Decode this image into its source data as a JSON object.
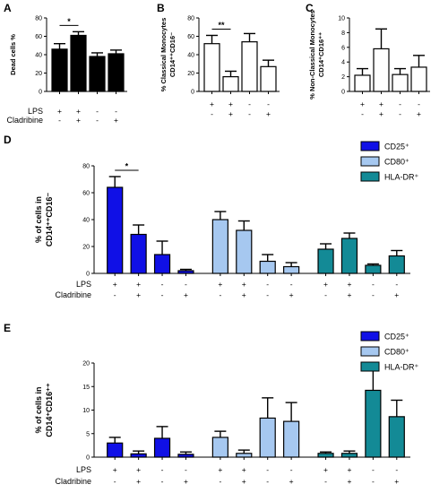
{
  "colors": {
    "CD25": "#1010e6",
    "CD80": "#a6c8f0",
    "HLA-DR": "#138a96",
    "black": "#000000",
    "white": "#ffffff"
  },
  "treatment_rows": {
    "lps_label": "LPS",
    "cladribine_label": "Cladribine",
    "lps_signs": [
      "+",
      "+",
      "-",
      "-"
    ],
    "cladribine_signs": [
      "-",
      "+",
      "-",
      "+"
    ]
  },
  "chart_data": [
    {
      "panel": "A",
      "type": "bar",
      "ylabel": "Dead cells %",
      "ylim": [
        0,
        80
      ],
      "yticks": [
        0,
        20,
        40,
        60,
        80
      ],
      "categories": [
        "LPS+ Cladribine-",
        "LPS+ Cladribine+",
        "LPS- Cladribine-",
        "LPS- Cladribine+"
      ],
      "values": [
        46,
        61,
        38,
        41
      ],
      "errors": [
        6,
        4,
        4,
        4
      ],
      "fill": "black",
      "significance": [
        {
          "from": 0,
          "to": 1,
          "label": "*"
        }
      ]
    },
    {
      "panel": "B",
      "type": "bar",
      "ylabel_line1": "% Classical Monocytes",
      "ylabel_line2": "CD14⁺⁺CD16⁻",
      "ylim": [
        0,
        80
      ],
      "yticks": [
        0,
        20,
        40,
        60,
        80
      ],
      "categories": [
        "LPS+ Cladribine-",
        "LPS+ Cladribine+",
        "LPS- Cladribine-",
        "LPS- Cladribine+"
      ],
      "values": [
        52,
        16,
        54,
        27
      ],
      "errors": [
        9,
        6,
        9,
        7
      ],
      "fill": "white",
      "significance": [
        {
          "from": 0,
          "to": 1,
          "label": "**"
        }
      ]
    },
    {
      "panel": "C",
      "type": "bar",
      "ylabel_line1": "% Non-Classical Monocytes",
      "ylabel_line2": "CD14⁺CD16⁺⁺",
      "ylim": [
        0,
        10
      ],
      "yticks": [
        0,
        2,
        4,
        6,
        8,
        10
      ],
      "categories": [
        "LPS+ Cladribine-",
        "LPS+ Cladribine+",
        "LPS- Cladribine-",
        "LPS- Cladribine+"
      ],
      "values": [
        2.2,
        5.8,
        2.3,
        3.3
      ],
      "errors": [
        0.9,
        2.7,
        0.8,
        1.6
      ],
      "fill": "white",
      "significance": []
    },
    {
      "panel": "D",
      "type": "bar",
      "ylabel_line1": "% of cells in",
      "ylabel_line2": "CD14⁺⁺CD16⁻",
      "ylim": [
        0,
        80
      ],
      "yticks": [
        0,
        20,
        40,
        60,
        80
      ],
      "categories": [
        "LPS+ Cladribine-",
        "LPS+ Cladribine+",
        "LPS- Cladribine-",
        "LPS- Cladribine+"
      ],
      "series": [
        {
          "name": "CD25⁺",
          "color_key": "CD25",
          "values": [
            64,
            29,
            14,
            2
          ],
          "errors": [
            8,
            7,
            10,
            1
          ]
        },
        {
          "name": "CD80⁺",
          "color_key": "CD80",
          "values": [
            40,
            32,
            9,
            5
          ],
          "errors": [
            6,
            7,
            5,
            3
          ]
        },
        {
          "name": "HLA-DR⁺",
          "color_key": "HLA-DR",
          "values": [
            18,
            26,
            6,
            13
          ],
          "errors": [
            4,
            4,
            1,
            4
          ]
        }
      ],
      "legend": "top-right",
      "significance": [
        {
          "from": 0,
          "to": 1,
          "label": "*"
        }
      ]
    },
    {
      "panel": "E",
      "type": "bar",
      "ylabel_line1": "% of cells in",
      "ylabel_line2": "CD14⁺CD16⁺⁺",
      "ylim": [
        0,
        20
      ],
      "yticks": [
        0,
        5,
        10,
        15,
        20
      ],
      "categories": [
        "LPS+ Cladribine-",
        "LPS+ Cladribine+",
        "LPS- Cladribine-",
        "LPS- Cladribine+"
      ],
      "series": [
        {
          "name": "CD25⁺",
          "color_key": "CD25",
          "values": [
            3,
            0.7,
            4,
            0.6
          ],
          "errors": [
            1.2,
            0.6,
            2.5,
            0.5
          ]
        },
        {
          "name": "CD80⁺",
          "color_key": "CD80",
          "values": [
            4.2,
            0.8,
            8.3,
            7.6
          ],
          "errors": [
            1.3,
            0.7,
            4.3,
            4.0
          ]
        },
        {
          "name": "HLA-DR⁺",
          "color_key": "HLA-DR",
          "values": [
            0.8,
            0.8,
            14.2,
            8.6
          ],
          "errors": [
            0.3,
            0.5,
            5.5,
            3.5
          ]
        }
      ],
      "legend": "top-right",
      "significance": []
    }
  ]
}
